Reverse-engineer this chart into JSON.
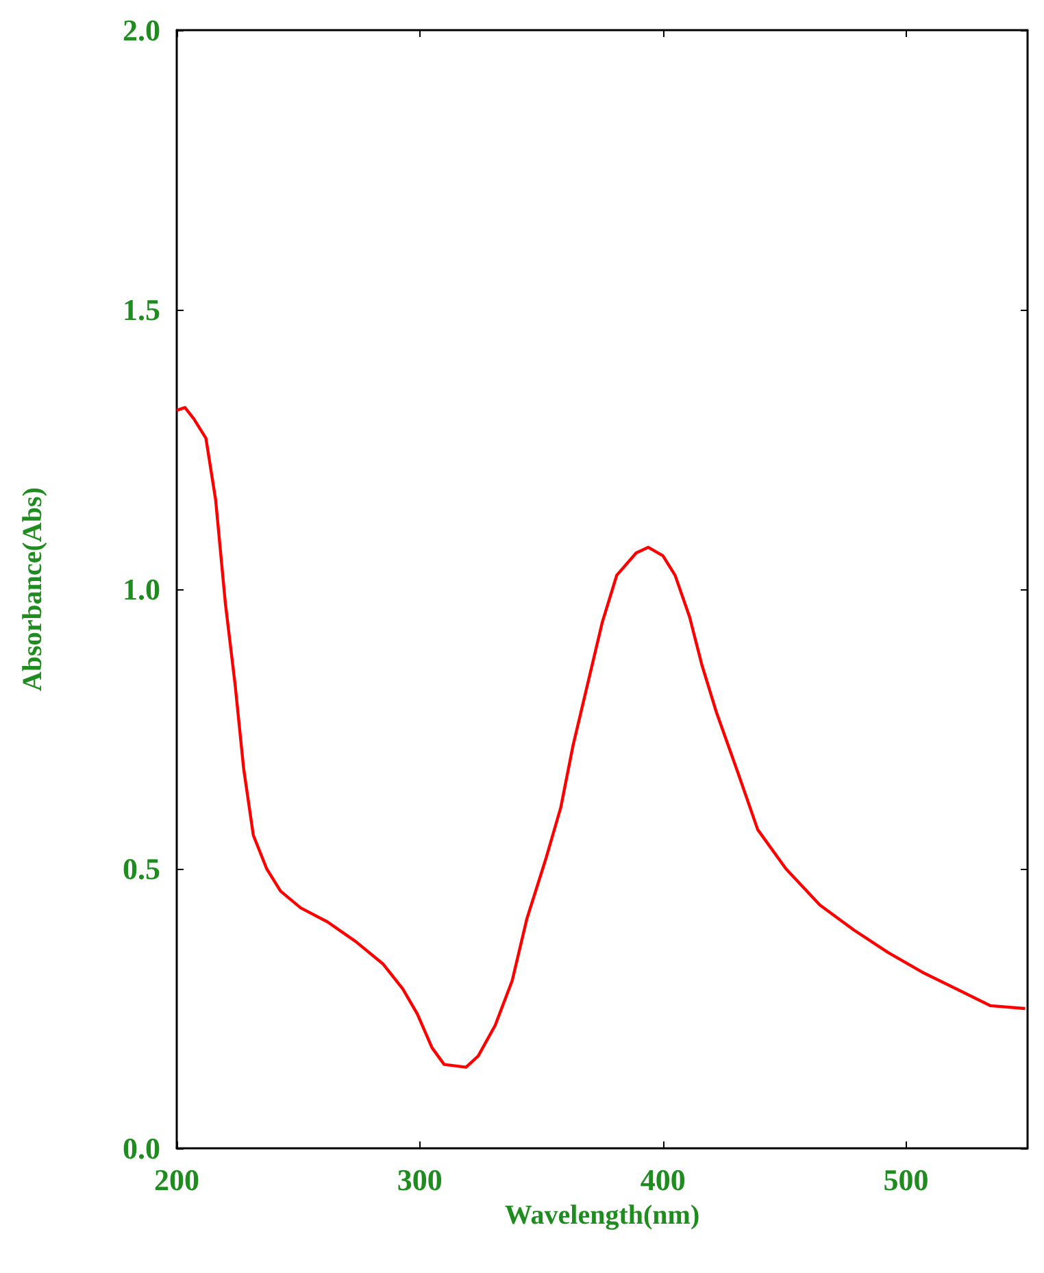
{
  "chart_data": {
    "type": "line",
    "xlabel": "Wavelength(nm)",
    "ylabel": "Absorbance(Abs)",
    "x": [
      200,
      203.4,
      207,
      212,
      216,
      220,
      224,
      227.5,
      231.5,
      237,
      242.7,
      251,
      262,
      273.6,
      284.8,
      293,
      299,
      305,
      310,
      319,
      324,
      331,
      338,
      344,
      352,
      358,
      363,
      369,
      375,
      381,
      389,
      394,
      400,
      405,
      411,
      416,
      422,
      431,
      439,
      450.6,
      464.6,
      478.7,
      492.7,
      506.7,
      520.8,
      534.8,
      549
    ],
    "series": [
      {
        "color": "#ff0000",
        "values": [
          1.32,
          1.325,
          1.305,
          1.27,
          1.16,
          0.975,
          0.83,
          0.68,
          0.56,
          0.5,
          0.46,
          0.43,
          0.405,
          0.37,
          0.33,
          0.285,
          0.24,
          0.18,
          0.15,
          0.145,
          0.165,
          0.22,
          0.3,
          0.41,
          0.52,
          0.61,
          0.72,
          0.83,
          0.94,
          1.025,
          1.065,
          1.075,
          1.06,
          1.025,
          0.95,
          0.865,
          0.78,
          0.67,
          0.57,
          0.5,
          0.435,
          0.39,
          0.35,
          0.315,
          0.285,
          0.255,
          0.25
        ]
      }
    ],
    "xlim": [
      200,
      550
    ],
    "xticks": [
      200,
      300,
      400,
      500
    ],
    "ylim": [
      0,
      2
    ],
    "yticks": [
      {
        "value": 0,
        "label": "0.0"
      },
      {
        "value": 0.5,
        "label": "0.5"
      },
      {
        "value": 1,
        "label": "1.0"
      },
      {
        "value": 1.5,
        "label": "1.5"
      },
      {
        "value": 2,
        "label": "2.0"
      }
    ],
    "grid": false,
    "marker": "none",
    "line_style": "solid"
  }
}
